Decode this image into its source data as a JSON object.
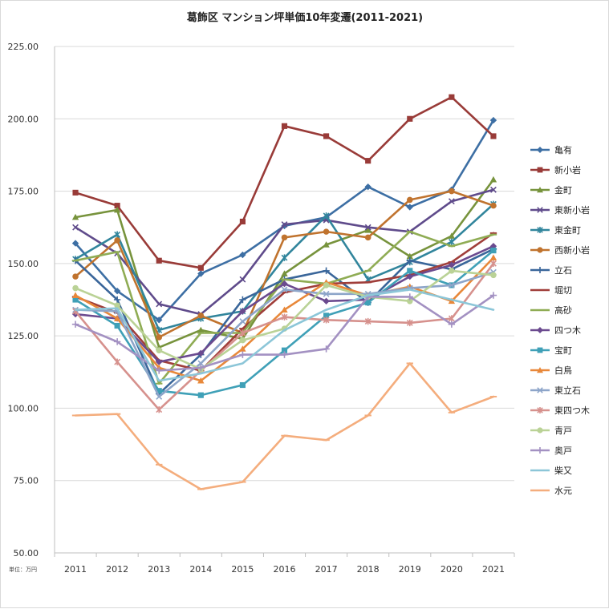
{
  "chart_data": {
    "type": "line",
    "title": "葛飾区 マンション坪単価10年変遷(2011-2021)",
    "unit_label": "単位：万円",
    "xlabel": "",
    "ylabel": "",
    "ylim": [
      50,
      225
    ],
    "y_ticks": [
      "50.00",
      "75.00",
      "100.00",
      "125.00",
      "150.00",
      "175.00",
      "200.00",
      "225.00"
    ],
    "categories": [
      "2011",
      "2012",
      "2013",
      "2014",
      "2015",
      "2016",
      "2017",
      "2018",
      "2019",
      "2020",
      "2021"
    ],
    "grid": "horizontal",
    "legend_position": "right",
    "series": [
      {
        "name": "亀有",
        "color": "#3d6fa4",
        "marker": "diamond",
        "values": [
          157,
          140.5,
          130.5,
          146.5,
          153,
          163,
          166,
          176.5,
          169.5,
          175.5,
          199.5
        ]
      },
      {
        "name": "新小岩",
        "color": "#993b38",
        "marker": "square",
        "values": [
          174.5,
          170,
          151,
          148.5,
          164.5,
          197.5,
          194,
          185.5,
          200,
          207.5,
          194
        ]
      },
      {
        "name": "金町",
        "color": "#77933c",
        "marker": "triangle",
        "values": [
          166,
          168.5,
          121,
          127,
          124,
          146.5,
          156.5,
          161.5,
          152.5,
          159.5,
          179
        ]
      },
      {
        "name": "東新小岩",
        "color": "#5f4b8b",
        "marker": "x",
        "values": [
          162.5,
          153.5,
          136,
          132.5,
          144.5,
          163.5,
          165,
          162.5,
          161,
          171.5,
          175.5
        ]
      },
      {
        "name": "東金町",
        "color": "#31859c",
        "marker": "star",
        "values": [
          151.5,
          160,
          127,
          131,
          133.5,
          152,
          166.5,
          144.5,
          150.5,
          157.5,
          170.5
        ]
      },
      {
        "name": "西新小岩",
        "color": "#c0732e",
        "marker": "circle",
        "values": [
          145.5,
          158,
          124.5,
          132,
          126,
          159,
          161,
          159,
          172,
          175,
          170
        ]
      },
      {
        "name": "立石",
        "color": "#3a669a",
        "marker": "plus",
        "values": [
          151,
          137.5,
          105,
          118.5,
          137.5,
          144.5,
          147.5,
          136.5,
          151,
          148,
          155
        ]
      },
      {
        "name": "堀切",
        "color": "#a03e3a",
        "marker": "dash",
        "values": [
          138.5,
          133,
          116.5,
          113,
          127.5,
          140,
          143,
          143.5,
          146,
          150.5,
          160.5
        ]
      },
      {
        "name": "高砂",
        "color": "#8fac54",
        "marker": "dash",
        "values": [
          151,
          154,
          108.5,
          126,
          126,
          144.5,
          143,
          147.5,
          161,
          156,
          160
        ]
      },
      {
        "name": "四つ木",
        "color": "#6b4a8f",
        "marker": "diamond",
        "values": [
          132.5,
          131,
          116,
          119,
          133.5,
          143,
          137,
          137.5,
          145.5,
          149.5,
          156
        ]
      },
      {
        "name": "宝町",
        "color": "#3fa0b7",
        "marker": "square",
        "values": [
          137.5,
          128.5,
          106,
          104.5,
          108,
          120,
          132,
          136.5,
          147.5,
          142.5,
          154.5
        ]
      },
      {
        "name": "白鳥",
        "color": "#e8883a",
        "marker": "triangle",
        "values": [
          139,
          131,
          114,
          109.5,
          120.5,
          134,
          143.5,
          139,
          142,
          137,
          152
        ]
      },
      {
        "name": "東立石",
        "color": "#8da5c9",
        "marker": "x",
        "values": [
          134,
          133.5,
          104,
          115.5,
          130,
          141,
          139.5,
          139.5,
          141.5,
          142.5,
          147
        ]
      },
      {
        "name": "東四つ木",
        "color": "#d6918d",
        "marker": "star",
        "values": [
          133.5,
          116,
          99.5,
          113,
          126,
          131.5,
          130.5,
          130,
          129.5,
          131,
          150
        ]
      },
      {
        "name": "青戸",
        "color": "#bad296",
        "marker": "circle",
        "values": [
          141.5,
          135.5,
          120,
          113.5,
          123.5,
          127.5,
          142.5,
          138.5,
          137,
          147.5,
          146
        ]
      },
      {
        "name": "奥戸",
        "color": "#a391c2",
        "marker": "plus",
        "values": [
          129,
          123,
          113,
          114,
          118.5,
          118.5,
          120.5,
          138.5,
          138.5,
          129,
          139
        ]
      },
      {
        "name": "柴又",
        "color": "#8cc6d8",
        "marker": "none",
        "values": [
          134,
          134.5,
          109.5,
          112,
          115.5,
          127,
          134,
          139,
          141,
          137.5,
          134
        ]
      },
      {
        "name": "水元",
        "color": "#f4ad7d",
        "marker": "dash",
        "values": [
          97.5,
          98,
          80.5,
          72,
          74.5,
          90.5,
          89,
          97.5,
          115.5,
          98.5,
          104
        ]
      }
    ]
  }
}
